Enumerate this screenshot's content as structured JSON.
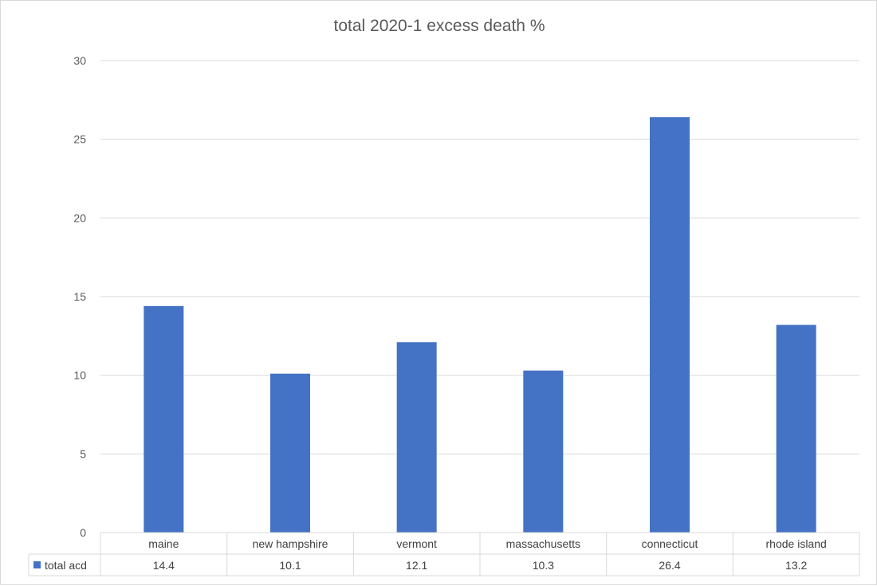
{
  "chart_data": {
    "type": "bar",
    "title": "total 2020-1 excess death %",
    "categories": [
      "maine",
      "new hampshire",
      "vermont",
      "massachusetts",
      "connecticut",
      "rhode island"
    ],
    "series": [
      {
        "name": "total acd",
        "values": [
          14.4,
          10.1,
          12.1,
          10.3,
          26.4,
          13.2
        ],
        "color": "#4472C4"
      }
    ],
    "table_values": [
      "14.4",
      "10.1",
      "12.1",
      "10.3",
      "26.4",
      "13.2"
    ],
    "ylim": [
      0,
      30
    ],
    "yticks": [
      0,
      5,
      10,
      15,
      20,
      25,
      30
    ],
    "grid": true,
    "legend": "data-table",
    "xlabel": "",
    "ylabel": ""
  }
}
